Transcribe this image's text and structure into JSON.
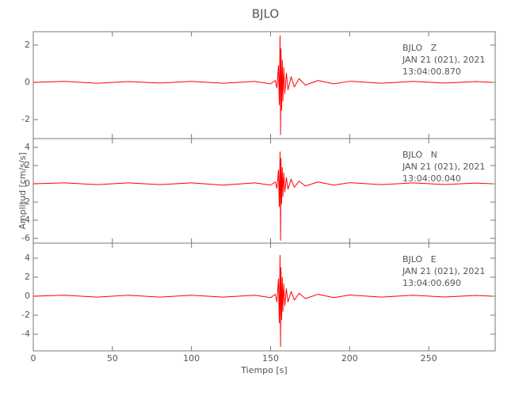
{
  "chart_data": [
    {
      "type": "line",
      "title": "BJLO",
      "annotations": [
        "BJLO   Z",
        "JAN 21 (021), 2021",
        "13:04:00.870"
      ],
      "x": [
        0,
        20,
        40,
        60,
        80,
        100,
        120,
        140,
        150,
        153,
        154,
        155,
        155.5,
        156,
        156.3,
        156.6,
        157,
        157.4,
        157.8,
        158.3,
        159,
        160,
        161,
        163,
        165,
        168,
        172,
        180,
        190,
        200,
        220,
        240,
        260,
        280,
        290
      ],
      "series": [
        {
          "color": "#ff0000",
          "values": [
            0,
            0.05,
            -0.05,
            0.04,
            -0.04,
            0.05,
            -0.05,
            0.05,
            -0.08,
            0.1,
            -0.3,
            0.9,
            -1.2,
            2.5,
            -2.8,
            1.8,
            -1.5,
            1.2,
            -1.0,
            0.8,
            -0.6,
            0.5,
            -0.4,
            0.3,
            -0.25,
            0.2,
            -0.15,
            0.1,
            -0.08,
            0.06,
            -0.05,
            0.05,
            -0.04,
            0.04,
            0
          ]
        }
      ],
      "xlim": [
        0,
        292
      ],
      "xticks": [
        0,
        50,
        100,
        150,
        200,
        250
      ],
      "ylim": [
        -3.02,
        2.72
      ],
      "yticks": [
        -2,
        0,
        2
      ]
    },
    {
      "type": "line",
      "ylabel": "Amplitud [cm/s/s]",
      "annotations": [
        "BJLO   N",
        "JAN 21 (021), 2021",
        "13:04:00.040"
      ],
      "x": [
        0,
        20,
        40,
        60,
        80,
        100,
        120,
        140,
        150,
        153,
        154,
        155,
        155.5,
        156,
        156.3,
        156.6,
        157,
        157.4,
        157.8,
        158.3,
        159,
        160,
        161,
        163,
        165,
        168,
        172,
        180,
        190,
        200,
        220,
        240,
        260,
        280,
        290
      ],
      "series": [
        {
          "color": "#ff0000",
          "values": [
            0,
            0.1,
            -0.1,
            0.1,
            -0.1,
            0.1,
            -0.15,
            0.1,
            -0.15,
            0.2,
            -0.5,
            1.5,
            -2.5,
            3.5,
            -6.2,
            2.8,
            -2.2,
            1.8,
            -1.4,
            1.2,
            -0.9,
            0.7,
            -0.6,
            0.5,
            -0.4,
            0.3,
            -0.25,
            0.2,
            -0.15,
            0.12,
            -0.1,
            0.1,
            -0.08,
            0.08,
            0
          ]
        }
      ],
      "xlim": [
        0,
        292
      ],
      "xticks": [
        0,
        50,
        100,
        150,
        200,
        250
      ],
      "ylim": [
        -6.52,
        4.96
      ],
      "yticks": [
        -6,
        -4,
        -2,
        0,
        2,
        4
      ]
    },
    {
      "type": "line",
      "xlabel": "Tiempo [s]",
      "annotations": [
        "BJLO   E",
        "JAN 21 (021), 2021",
        "13:04:00.690"
      ],
      "x": [
        0,
        20,
        40,
        60,
        80,
        100,
        120,
        140,
        150,
        153,
        154,
        155,
        155.5,
        156,
        156.3,
        156.6,
        157,
        157.4,
        157.8,
        158.3,
        159,
        160,
        161,
        163,
        165,
        168,
        172,
        180,
        190,
        200,
        220,
        240,
        260,
        280,
        290
      ],
      "series": [
        {
          "color": "#ff0000",
          "values": [
            0,
            0.1,
            -0.1,
            0.1,
            -0.1,
            0.1,
            -0.1,
            0.1,
            -0.15,
            0.2,
            -0.6,
            1.8,
            -2.8,
            4.3,
            -5.3,
            3.0,
            -2.5,
            2.0,
            -1.6,
            1.3,
            -1.0,
            0.8,
            -0.6,
            0.5,
            -0.4,
            0.3,
            -0.25,
            0.2,
            -0.15,
            0.12,
            -0.1,
            0.1,
            -0.08,
            0.08,
            0
          ]
        }
      ],
      "xlim": [
        0,
        292
      ],
      "xticks": [
        0,
        50,
        100,
        150,
        200,
        250
      ],
      "show_xtick_labels": true,
      "ylim": [
        -5.75,
        5.58
      ],
      "yticks": [
        -4,
        -2,
        0,
        2,
        4
      ]
    }
  ]
}
